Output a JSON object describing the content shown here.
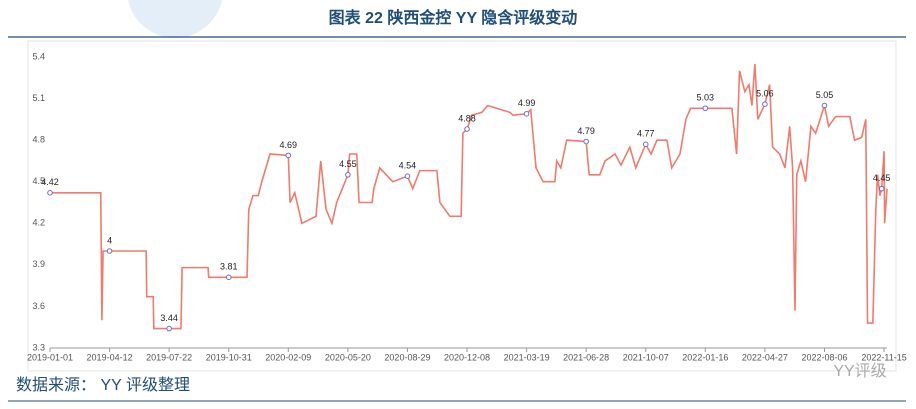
{
  "chart_data": {
    "type": "line",
    "title": "图表 22 陕西金控 YY 隐含评级变动",
    "source": "数据来源： YY 评级整理",
    "watermark": "YY评级",
    "x": [
      "2019-01-01",
      "2019-03-28",
      "2019-03-30",
      "2019-04-01",
      "2019-04-12",
      "2019-06-13",
      "2019-06-14",
      "2019-06-25",
      "2019-06-26",
      "2019-07-22",
      "2019-08-11",
      "2019-08-13",
      "2019-09-26",
      "2019-09-27",
      "2019-10-31",
      "2019-12-01",
      "2019-12-04",
      "2019-12-11",
      "2019-12-20",
      "2019-12-26",
      "2020-01-02",
      "2020-01-09",
      "2020-02-09",
      "2020-02-12",
      "2020-02-20",
      "2020-03-03",
      "2020-03-27",
      "2020-04-04",
      "2020-04-13",
      "2020-04-23",
      "2020-05-01",
      "2020-05-20",
      "2020-05-23",
      "2020-06-04",
      "2020-06-08",
      "2020-06-30",
      "2020-07-03",
      "2020-07-13",
      "2020-08-04",
      "2020-08-29",
      "2020-09-07",
      "2020-09-19",
      "2020-10-18",
      "2020-10-23",
      "2020-11-09",
      "2020-11-28",
      "2020-12-01",
      "2020-12-08",
      "2020-12-16",
      "2021-01-02",
      "2021-01-12",
      "2021-02-19",
      "2021-02-24",
      "2021-03-19",
      "2021-03-26",
      "2021-04-04",
      "2021-04-16",
      "2021-05-06",
      "2021-05-09",
      "2021-05-16",
      "2021-05-26",
      "2021-06-28",
      "2021-07-03",
      "2021-07-21",
      "2021-07-30",
      "2021-08-16",
      "2021-08-26",
      "2021-09-10",
      "2021-09-20",
      "2021-10-07",
      "2021-10-16",
      "2021-10-26",
      "2021-11-12",
      "2021-11-20",
      "2021-12-04",
      "2021-12-14",
      "2021-12-22",
      "2022-01-16",
      "2022-03-02",
      "2022-03-10",
      "2022-03-15",
      "2022-03-24",
      "2022-03-31",
      "2022-04-05",
      "2022-04-10",
      "2022-04-15",
      "2022-04-27",
      "2022-05-05",
      "2022-05-10",
      "2022-05-22",
      "2022-05-31",
      "2022-06-08",
      "2022-06-13",
      "2022-06-17",
      "2022-06-20",
      "2022-06-27",
      "2022-07-05",
      "2022-07-14",
      "2022-07-22",
      "2022-08-06",
      "2022-08-13",
      "2022-08-25",
      "2022-09-18",
      "2022-09-26",
      "2022-10-08",
      "2022-10-15",
      "2022-10-18",
      "2022-10-27",
      "2022-11-01",
      "2022-11-04",
      "2022-11-08",
      "2022-11-11",
      "2022-11-15",
      "2022-11-16",
      "2022-11-20"
    ],
    "values": [
      4.42,
      4.42,
      3.5,
      4.0,
      4.0,
      4.0,
      3.67,
      3.67,
      3.44,
      3.44,
      3.44,
      3.88,
      3.88,
      3.81,
      3.81,
      3.81,
      4.3,
      4.4,
      4.4,
      4.5,
      4.6,
      4.7,
      4.69,
      4.35,
      4.42,
      4.2,
      4.25,
      4.65,
      4.3,
      4.2,
      4.35,
      4.55,
      4.7,
      4.7,
      4.35,
      4.35,
      4.45,
      4.6,
      4.5,
      4.54,
      4.45,
      4.58,
      4.58,
      4.35,
      4.25,
      4.25,
      4.85,
      4.88,
      4.98,
      5.0,
      5.05,
      5.0,
      4.98,
      4.99,
      5.02,
      4.6,
      4.5,
      4.5,
      4.65,
      4.6,
      4.8,
      4.79,
      4.55,
      4.55,
      4.65,
      4.7,
      4.62,
      4.75,
      4.6,
      4.77,
      4.7,
      4.8,
      4.8,
      4.6,
      4.7,
      4.95,
      5.03,
      5.03,
      5.03,
      4.7,
      5.3,
      5.15,
      5.2,
      5.05,
      5.35,
      4.95,
      5.06,
      5.2,
      4.75,
      4.7,
      4.6,
      4.9,
      4.6,
      3.57,
      4.55,
      4.65,
      4.5,
      4.9,
      4.85,
      5.05,
      4.9,
      4.97,
      4.97,
      4.8,
      4.82,
      4.95,
      3.48,
      3.48,
      4.3,
      4.55,
      4.4,
      4.45,
      4.72,
      4.2,
      4.45
    ],
    "value_labels": [
      "4.42",
      null,
      null,
      null,
      "4",
      null,
      null,
      null,
      null,
      "3.44",
      null,
      null,
      null,
      null,
      "3.81",
      null,
      null,
      null,
      null,
      null,
      null,
      null,
      "4.69",
      null,
      null,
      null,
      null,
      null,
      null,
      null,
      null,
      "4.55",
      null,
      null,
      null,
      null,
      null,
      null,
      null,
      "4.54",
      null,
      null,
      null,
      null,
      null,
      null,
      null,
      "4.88",
      null,
      null,
      null,
      null,
      null,
      "4.99",
      null,
      null,
      null,
      null,
      null,
      null,
      null,
      "4.79",
      null,
      null,
      null,
      null,
      null,
      null,
      null,
      "4.77",
      null,
      null,
      null,
      null,
      null,
      null,
      null,
      "5.03",
      null,
      null,
      null,
      null,
      null,
      null,
      null,
      null,
      "5.06",
      null,
      null,
      null,
      null,
      null,
      null,
      null,
      null,
      null,
      null,
      null,
      null,
      "5.05",
      null,
      null,
      null,
      null,
      null,
      null,
      null,
      null,
      null,
      null,
      null,
      "4.45",
      null,
      null,
      null
    ],
    "color": "#f07b6c",
    "marker_color": "#6b6bd6",
    "xlim": [
      "2019-01-01",
      "2022-11-20"
    ],
    "xticks": [
      "2019-01-01",
      "2019-04-12",
      "2019-07-22",
      "2019-10-31",
      "2020-02-09",
      "2020-05-20",
      "2020-08-29",
      "2020-12-08",
      "2021-03-19",
      "2021-06-28",
      "2021-10-07",
      "2022-01-16",
      "2022-04-27",
      "2022-08-06",
      "2022-11-15"
    ],
    "ylim": [
      3.3,
      5.4
    ],
    "yticks": [
      3.3,
      3.6,
      3.9,
      4.2,
      4.5,
      4.8,
      5.1,
      5.4
    ],
    "grid": false
  }
}
